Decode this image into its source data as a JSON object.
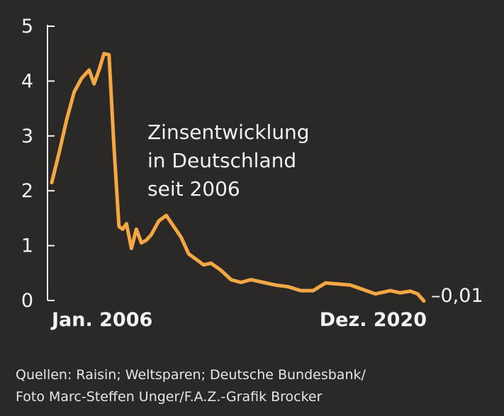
{
  "chart_data": {
    "type": "line",
    "title_lines": [
      "Zinsentwicklung",
      "in Deutschland",
      "seit 2006"
    ],
    "xlabel": "",
    "ylabel": "",
    "x_tick_labels": [
      "Jan. 2006",
      "Dez. 2020"
    ],
    "y_ticks": [
      0,
      1,
      2,
      3,
      4,
      5
    ],
    "y_tick_labels": [
      "0",
      "1",
      "2",
      "3",
      "4",
      "5"
    ],
    "ylim": [
      0,
      5
    ],
    "end_label": "–0,01",
    "grid": false,
    "series": [
      {
        "color": "#f4a742",
        "x": [
          2006.0,
          2006.3,
          2006.6,
          2006.9,
          2007.2,
          2007.5,
          2007.7,
          2007.9,
          2008.1,
          2008.3,
          2008.5,
          2008.7,
          2008.85,
          2009.0,
          2009.2,
          2009.4,
          2009.6,
          2009.8,
          2010.0,
          2010.3,
          2010.6,
          2010.9,
          2011.2,
          2011.5,
          2011.8,
          2012.1,
          2012.4,
          2012.8,
          2013.2,
          2013.6,
          2014.0,
          2014.5,
          2015.0,
          2015.5,
          2016.0,
          2016.5,
          2017.0,
          2017.5,
          2018.0,
          2018.5,
          2019.0,
          2019.3,
          2019.6,
          2020.0,
          2020.4,
          2020.7,
          2020.95
        ],
        "y": [
          2.15,
          2.7,
          3.3,
          3.8,
          4.05,
          4.2,
          3.95,
          4.2,
          4.5,
          4.48,
          2.8,
          1.35,
          1.3,
          1.4,
          0.95,
          1.3,
          1.05,
          1.1,
          1.2,
          1.45,
          1.55,
          1.35,
          1.15,
          0.85,
          0.75,
          0.65,
          0.68,
          0.55,
          0.38,
          0.33,
          0.38,
          0.33,
          0.28,
          0.25,
          0.18,
          0.18,
          0.32,
          0.3,
          0.28,
          0.2,
          0.12,
          0.15,
          0.18,
          0.14,
          0.17,
          0.12,
          -0.01
        ]
      }
    ]
  },
  "source_lines": [
    "Quellen: Raisin; Weltsparen; Deutsche Bundesbank/",
    "Foto Marc-Steffen Unger/F.A.Z.-Grafik Brocker"
  ]
}
